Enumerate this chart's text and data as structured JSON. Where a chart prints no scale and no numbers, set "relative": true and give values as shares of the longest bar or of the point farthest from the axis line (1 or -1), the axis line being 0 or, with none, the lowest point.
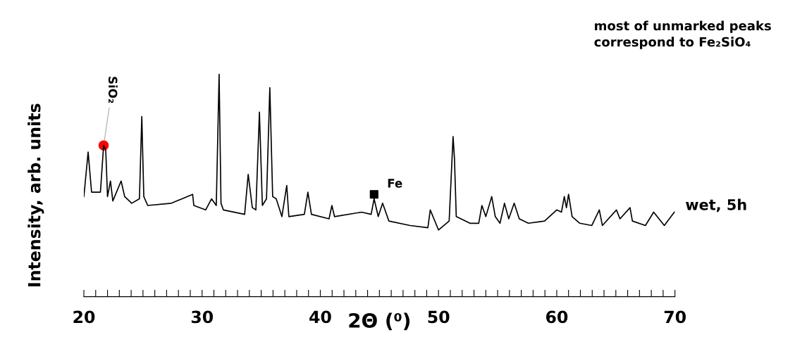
{
  "chart_data": {
    "type": "line",
    "relative": true,
    "title": "most of unmarked peaks correspond to Fe₂SiO₄",
    "xlabel": "2Θ (⁰)",
    "ylabel": "Intensity, arb. units",
    "annotations": [
      "wet, 5h"
    ],
    "xlim": [
      20,
      70
    ],
    "xticks": [
      20,
      {
        "value": 21,
        "label": null
      },
      {
        "value": 22,
        "label": null
      },
      {
        "value": 23,
        "label": null
      },
      {
        "value": 24,
        "label": null
      },
      {
        "value": 25,
        "label": null
      },
      {
        "value": 26,
        "label": null
      },
      {
        "value": 27,
        "label": null
      },
      {
        "value": 28,
        "label": null
      },
      {
        "value": 29,
        "label": null
      },
      30,
      {
        "value": 31,
        "label": null
      },
      {
        "value": 32,
        "label": null
      },
      {
        "value": 33,
        "label": null
      },
      {
        "value": 34,
        "label": null
      },
      {
        "value": 35,
        "label": null
      },
      {
        "value": 36,
        "label": null
      },
      {
        "value": 37,
        "label": null
      },
      {
        "value": 38,
        "label": null
      },
      {
        "value": 39,
        "label": null
      },
      40,
      {
        "value": 41,
        "label": null
      },
      {
        "value": 42,
        "label": null
      },
      {
        "value": 43,
        "label": null
      },
      {
        "value": 44,
        "label": null
      },
      {
        "value": 45,
        "label": null
      },
      {
        "value": 46,
        "label": null
      },
      {
        "value": 47,
        "label": null
      },
      {
        "value": 48,
        "label": null
      },
      {
        "value": 49,
        "label": null
      },
      50,
      {
        "value": 51,
        "label": null
      },
      {
        "value": 52,
        "label": null
      },
      {
        "value": 53,
        "label": null
      },
      {
        "value": 54,
        "label": null
      },
      {
        "value": 55,
        "label": null
      },
      {
        "value": 56,
        "label": null
      },
      {
        "value": 57,
        "label": null
      },
      {
        "value": 58,
        "label": null
      },
      {
        "value": 59,
        "label": null
      },
      60,
      {
        "value": 61,
        "label": null
      },
      {
        "value": 62,
        "label": null
      },
      {
        "value": 63,
        "label": null
      },
      {
        "value": 64,
        "label": null
      },
      {
        "value": 65,
        "label": null
      },
      {
        "value": 66,
        "label": null
      },
      {
        "value": 67,
        "label": null
      },
      {
        "value": 68,
        "label": null
      },
      {
        "value": 69,
        "label": null
      },
      70
    ],
    "tick_labels": "x",
    "grid": false,
    "legend": false,
    "line_style": "solid",
    "series": [
      {
        "color": "#000000",
        "marker": "none",
        "x": [
          20.0,
          20.36,
          20.65,
          21.4,
          21.67,
          21.85,
          22.0,
          22.25,
          22.45,
          23.15,
          23.45,
          24.05,
          24.7,
          24.9,
          25.07,
          25.4,
          27.4,
          29.2,
          29.3,
          30.3,
          30.8,
          31.2,
          31.44,
          31.6,
          31.8,
          33.6,
          33.9,
          34.25,
          34.55,
          34.85,
          35.1,
          35.45,
          35.73,
          35.97,
          36.27,
          36.75,
          37.16,
          37.34,
          38.65,
          38.95,
          39.25,
          40.74,
          40.98,
          41.2,
          43.5,
          44.3,
          44.55,
          44.9,
          45.27,
          45.8,
          47.6,
          49.1,
          49.3,
          50.0,
          50.9,
          51.23,
          51.35,
          51.5,
          52.66,
          53.4,
          53.67,
          54.0,
          54.5,
          54.8,
          55.2,
          55.58,
          55.94,
          56.4,
          56.83,
          57.6,
          58.97,
          60.0,
          60.4,
          60.64,
          60.82,
          61.0,
          61.3,
          61.95,
          62.97,
          63.6,
          63.86,
          65.05,
          65.35,
          66.2,
          66.4,
          67.5,
          68.2,
          69.1,
          69.95
        ],
        "values": [
          0.45,
          0.65,
          0.47,
          0.47,
          0.68,
          0.66,
          0.45,
          0.52,
          0.43,
          0.52,
          0.45,
          0.42,
          0.44,
          0.81,
          0.45,
          0.41,
          0.42,
          0.46,
          0.41,
          0.39,
          0.44,
          0.41,
          1.0,
          0.42,
          0.39,
          0.37,
          0.55,
          0.4,
          0.39,
          0.83,
          0.41,
          0.44,
          0.94,
          0.45,
          0.44,
          0.36,
          0.5,
          0.36,
          0.37,
          0.47,
          0.37,
          0.35,
          0.41,
          0.36,
          0.38,
          0.37,
          0.44,
          0.36,
          0.42,
          0.34,
          0.32,
          0.31,
          0.39,
          0.3,
          0.34,
          0.72,
          0.62,
          0.36,
          0.33,
          0.33,
          0.41,
          0.36,
          0.45,
          0.36,
          0.33,
          0.42,
          0.35,
          0.42,
          0.35,
          0.33,
          0.34,
          0.39,
          0.38,
          0.45,
          0.4,
          0.46,
          0.36,
          0.33,
          0.32,
          0.39,
          0.32,
          0.39,
          0.35,
          0.4,
          0.34,
          0.32,
          0.38,
          0.32,
          0.38
        ]
      },
      {
        "type": "scatter",
        "name": "SiO₂",
        "color": "#ff0000",
        "marker": "circle",
        "x": [
          21.67
        ],
        "values": [
          0.68
        ]
      },
      {
        "type": "scatter",
        "name": "Fe",
        "color": "#000000",
        "marker": "square",
        "x": [
          44.55
        ],
        "values": [
          0.46
        ]
      }
    ]
  }
}
